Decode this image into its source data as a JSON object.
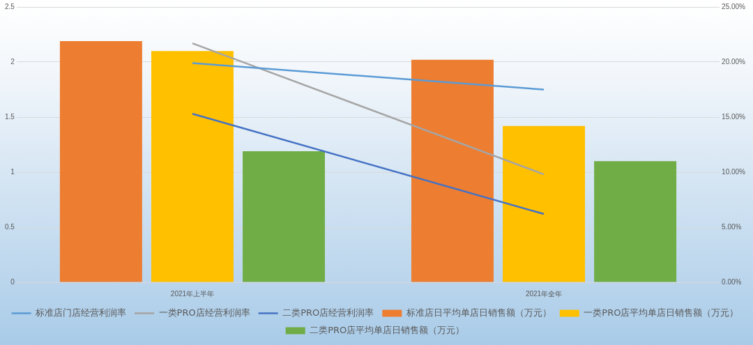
{
  "chart_data": {
    "type": "bar",
    "categories": [
      "2021年上半年",
      "2021年全年"
    ],
    "series": [
      {
        "name": "标准店日平均单店日销售额（万元）",
        "color": "#ed7d31",
        "values": [
          2.19,
          2.02
        ]
      },
      {
        "name": "一类PRO店平均单店日销售额（万元）",
        "color": "#ffc000",
        "values": [
          2.1,
          1.42
        ]
      },
      {
        "name": "二类PRO店平均单店日销售额（万元）",
        "color": "#70ad47",
        "values": [
          1.19,
          1.1
        ]
      },
      {
        "name": "标准店门店经营利润率",
        "type": "line",
        "axis": "y2",
        "color": "#5b9bd5",
        "values": [
          19.9,
          17.5
        ]
      },
      {
        "name": "一类PRO店经营利润率",
        "type": "line",
        "axis": "y2",
        "color": "#a5a5a5",
        "values": [
          21.7,
          9.8
        ]
      },
      {
        "name": "二类PRO店经营利润率",
        "type": "line",
        "axis": "y2",
        "color": "#4472c4",
        "values": [
          15.3,
          6.2
        ]
      }
    ],
    "ylim": [
      0,
      2.5
    ],
    "yticks": [
      0,
      0.5,
      1,
      1.5,
      2,
      2.5
    ],
    "y2lim": [
      0,
      25
    ],
    "y2ticks": [
      {
        "value": 0,
        "label": "0.00%"
      },
      {
        "value": 5,
        "label": "5.00%"
      },
      {
        "value": 10,
        "label": "10.00%"
      },
      {
        "value": 15,
        "label": "15.00%"
      },
      {
        "value": 20,
        "label": "20.00%"
      },
      {
        "value": 25,
        "label": "25.00%"
      }
    ],
    "grid": "y",
    "legend": "bottom",
    "marker": "none",
    "line_style": "solid"
  }
}
